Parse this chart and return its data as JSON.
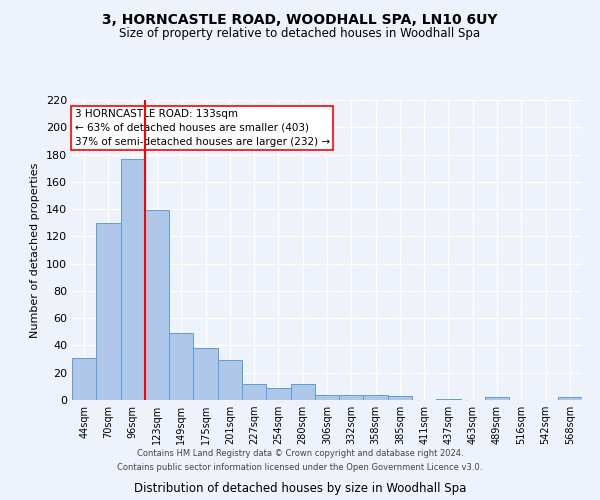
{
  "title": "3, HORNCASTLE ROAD, WOODHALL SPA, LN10 6UY",
  "subtitle": "Size of property relative to detached houses in Woodhall Spa",
  "xlabel": "Distribution of detached houses by size in Woodhall Spa",
  "ylabel": "Number of detached properties",
  "bar_color": "#aec6e8",
  "bar_edge_color": "#5a9fd4",
  "background_color": "#eef2fa",
  "grid_color": "#ffffff",
  "bins": [
    "44sqm",
    "70sqm",
    "96sqm",
    "123sqm",
    "149sqm",
    "175sqm",
    "201sqm",
    "227sqm",
    "254sqm",
    "280sqm",
    "306sqm",
    "332sqm",
    "358sqm",
    "385sqm",
    "411sqm",
    "437sqm",
    "463sqm",
    "489sqm",
    "516sqm",
    "542sqm",
    "568sqm"
  ],
  "values": [
    31,
    130,
    177,
    139,
    49,
    38,
    29,
    12,
    9,
    12,
    4,
    4,
    4,
    3,
    0,
    1,
    0,
    2,
    0,
    0,
    2
  ],
  "ylim": [
    0,
    220
  ],
  "yticks": [
    0,
    20,
    40,
    60,
    80,
    100,
    120,
    140,
    160,
    180,
    200,
    220
  ],
  "marker_label": "3 HORNCASTLE ROAD: 133sqm",
  "annotation_line1": "← 63% of detached houses are smaller (403)",
  "annotation_line2": "37% of semi-detached houses are larger (232) →",
  "footer1": "Contains HM Land Registry data © Crown copyright and database right 2024.",
  "footer2": "Contains public sector information licensed under the Open Government Licence v3.0.",
  "title_fontsize": 10,
  "subtitle_fontsize": 8.5,
  "ylabel_fontsize": 8,
  "xlabel_fontsize": 8.5,
  "tick_fontsize": 7,
  "footer_fontsize": 6,
  "annot_fontsize": 7.5
}
